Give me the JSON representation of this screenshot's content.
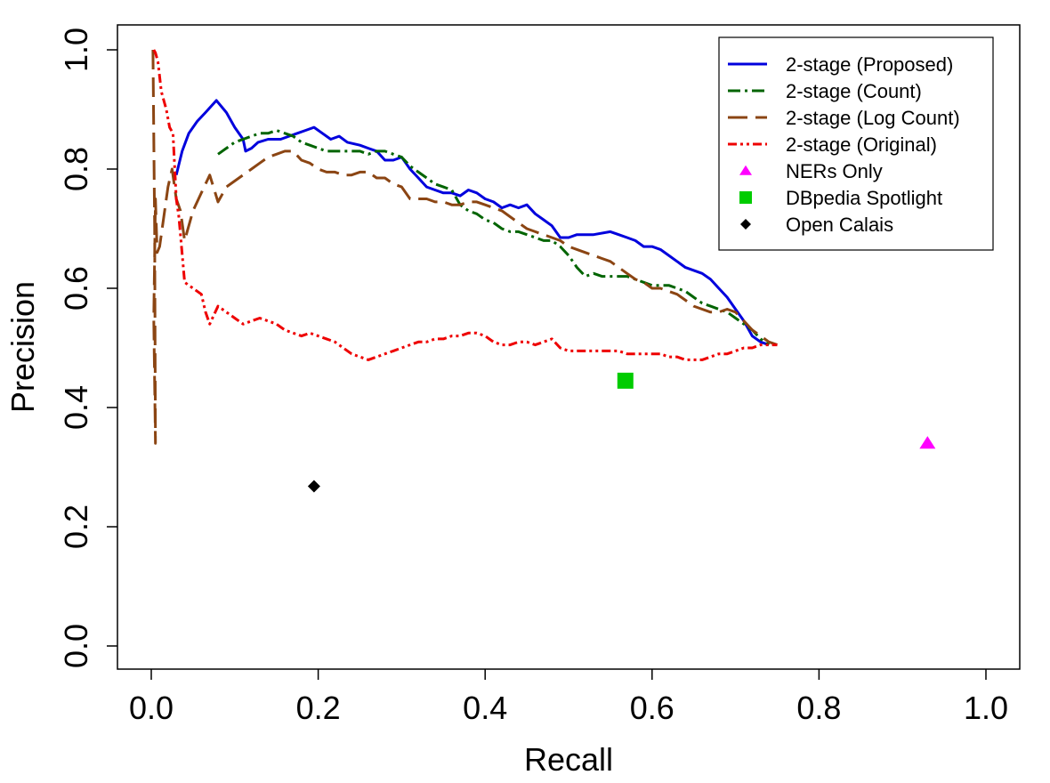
{
  "chart_data": {
    "type": "line",
    "title": "",
    "xlabel": "Recall",
    "ylabel": "Precision",
    "xlim": [
      0.0,
      1.0
    ],
    "ylim": [
      0.0,
      1.0
    ],
    "xticks": [
      "0.0",
      "0.2",
      "0.4",
      "0.6",
      "0.8",
      "1.0"
    ],
    "yticks": [
      "0.0",
      "0.2",
      "0.4",
      "0.6",
      "0.8",
      "1.0"
    ],
    "grid": false,
    "legend_position": "top-right",
    "series": [
      {
        "name": "2-stage (Proposed)",
        "color": "#0000dd",
        "style": "solid",
        "x": [
          0.03,
          0.037,
          0.045,
          0.055,
          0.065,
          0.078,
          0.09,
          0.1,
          0.11,
          0.113,
          0.12,
          0.128,
          0.14,
          0.155,
          0.165,
          0.175,
          0.185,
          0.195,
          0.205,
          0.215,
          0.225,
          0.235,
          0.25,
          0.26,
          0.27,
          0.28,
          0.29,
          0.3,
          0.31,
          0.32,
          0.33,
          0.34,
          0.35,
          0.36,
          0.37,
          0.38,
          0.39,
          0.4,
          0.41,
          0.42,
          0.43,
          0.44,
          0.45,
          0.46,
          0.47,
          0.48,
          0.49,
          0.5,
          0.51,
          0.52,
          0.53,
          0.55,
          0.56,
          0.57,
          0.58,
          0.59,
          0.6,
          0.61,
          0.62,
          0.63,
          0.64,
          0.65,
          0.66,
          0.67,
          0.68,
          0.69,
          0.7,
          0.71,
          0.72,
          0.73,
          0.74
        ],
        "y": [
          0.79,
          0.83,
          0.86,
          0.88,
          0.895,
          0.915,
          0.895,
          0.87,
          0.85,
          0.83,
          0.835,
          0.845,
          0.85,
          0.85,
          0.855,
          0.86,
          0.865,
          0.87,
          0.86,
          0.85,
          0.855,
          0.845,
          0.84,
          0.835,
          0.83,
          0.815,
          0.815,
          0.82,
          0.8,
          0.785,
          0.77,
          0.765,
          0.76,
          0.76,
          0.755,
          0.765,
          0.76,
          0.75,
          0.745,
          0.735,
          0.74,
          0.735,
          0.74,
          0.725,
          0.715,
          0.705,
          0.685,
          0.685,
          0.69,
          0.69,
          0.69,
          0.695,
          0.69,
          0.685,
          0.68,
          0.67,
          0.67,
          0.665,
          0.655,
          0.645,
          0.635,
          0.63,
          0.625,
          0.615,
          0.6,
          0.585,
          0.565,
          0.545,
          0.52,
          0.51,
          0.505
        ]
      },
      {
        "name": "2-stage (Count)",
        "color": "#006400",
        "style": "dashdot",
        "x": [
          0.08,
          0.09,
          0.1,
          0.11,
          0.12,
          0.13,
          0.14,
          0.15,
          0.16,
          0.17,
          0.18,
          0.19,
          0.2,
          0.21,
          0.22,
          0.23,
          0.24,
          0.25,
          0.26,
          0.27,
          0.28,
          0.29,
          0.3,
          0.31,
          0.32,
          0.33,
          0.34,
          0.35,
          0.36,
          0.37,
          0.38,
          0.39,
          0.4,
          0.41,
          0.42,
          0.43,
          0.44,
          0.45,
          0.46,
          0.47,
          0.48,
          0.49,
          0.5,
          0.51,
          0.52,
          0.53,
          0.54,
          0.55,
          0.56,
          0.57,
          0.58,
          0.59,
          0.6,
          0.61,
          0.62,
          0.63,
          0.64,
          0.65,
          0.66,
          0.67,
          0.68,
          0.69,
          0.7,
          0.71,
          0.72,
          0.73,
          0.74
        ],
        "y": [
          0.825,
          0.835,
          0.845,
          0.85,
          0.855,
          0.86,
          0.86,
          0.865,
          0.86,
          0.855,
          0.845,
          0.84,
          0.835,
          0.83,
          0.83,
          0.83,
          0.83,
          0.83,
          0.825,
          0.83,
          0.83,
          0.825,
          0.82,
          0.805,
          0.795,
          0.785,
          0.775,
          0.77,
          0.765,
          0.74,
          0.73,
          0.725,
          0.715,
          0.71,
          0.7,
          0.695,
          0.695,
          0.69,
          0.685,
          0.68,
          0.68,
          0.67,
          0.655,
          0.635,
          0.62,
          0.625,
          0.62,
          0.62,
          0.62,
          0.62,
          0.615,
          0.61,
          0.605,
          0.605,
          0.605,
          0.6,
          0.595,
          0.585,
          0.575,
          0.57,
          0.565,
          0.56,
          0.55,
          0.54,
          0.53,
          0.515,
          0.505
        ]
      },
      {
        "name": "2-stage (Log Count)",
        "color": "#8b4513",
        "style": "dashed",
        "x": [
          0.002,
          0.004,
          0.005,
          0.003,
          0.005,
          0.007,
          0.01,
          0.015,
          0.02,
          0.025,
          0.03,
          0.035,
          0.04,
          0.05,
          0.06,
          0.07,
          0.08,
          0.09,
          0.1,
          0.11,
          0.12,
          0.13,
          0.14,
          0.15,
          0.16,
          0.17,
          0.18,
          0.19,
          0.2,
          0.21,
          0.22,
          0.23,
          0.24,
          0.25,
          0.26,
          0.27,
          0.28,
          0.29,
          0.3,
          0.31,
          0.32,
          0.33,
          0.34,
          0.35,
          0.36,
          0.37,
          0.38,
          0.39,
          0.4,
          0.41,
          0.42,
          0.43,
          0.44,
          0.45,
          0.46,
          0.47,
          0.48,
          0.49,
          0.5,
          0.51,
          0.52,
          0.53,
          0.54,
          0.55,
          0.56,
          0.57,
          0.58,
          0.59,
          0.6,
          0.61,
          0.62,
          0.63,
          0.64,
          0.65,
          0.66,
          0.67,
          0.68,
          0.69,
          0.7,
          0.71,
          0.72,
          0.73,
          0.74,
          0.75
        ],
        "y": [
          1.0,
          0.7,
          0.34,
          0.55,
          0.75,
          0.66,
          0.67,
          0.72,
          0.77,
          0.8,
          0.75,
          0.73,
          0.68,
          0.73,
          0.76,
          0.79,
          0.745,
          0.77,
          0.78,
          0.79,
          0.8,
          0.81,
          0.82,
          0.825,
          0.83,
          0.83,
          0.815,
          0.81,
          0.8,
          0.795,
          0.795,
          0.79,
          0.79,
          0.795,
          0.795,
          0.785,
          0.785,
          0.775,
          0.77,
          0.75,
          0.75,
          0.75,
          0.745,
          0.745,
          0.74,
          0.74,
          0.745,
          0.745,
          0.74,
          0.735,
          0.73,
          0.72,
          0.71,
          0.7,
          0.695,
          0.69,
          0.685,
          0.68,
          0.67,
          0.665,
          0.66,
          0.655,
          0.65,
          0.645,
          0.635,
          0.625,
          0.615,
          0.61,
          0.6,
          0.6,
          0.595,
          0.59,
          0.58,
          0.57,
          0.565,
          0.56,
          0.56,
          0.565,
          0.56,
          0.545,
          0.53,
          0.52,
          0.51,
          0.505
        ]
      },
      {
        "name": "2-stage (Original)",
        "color": "#ee0000",
        "style": "dashdotdot",
        "x": [
          0.003,
          0.005,
          0.008,
          0.012,
          0.018,
          0.022,
          0.026,
          0.03,
          0.033,
          0.035,
          0.04,
          0.05,
          0.06,
          0.065,
          0.07,
          0.08,
          0.09,
          0.1,
          0.11,
          0.12,
          0.13,
          0.14,
          0.15,
          0.16,
          0.17,
          0.18,
          0.19,
          0.2,
          0.21,
          0.22,
          0.23,
          0.24,
          0.25,
          0.26,
          0.27,
          0.28,
          0.29,
          0.3,
          0.31,
          0.32,
          0.33,
          0.34,
          0.35,
          0.36,
          0.37,
          0.38,
          0.39,
          0.4,
          0.41,
          0.42,
          0.43,
          0.44,
          0.45,
          0.46,
          0.47,
          0.48,
          0.49,
          0.5,
          0.51,
          0.52,
          0.53,
          0.54,
          0.55,
          0.56,
          0.57,
          0.58,
          0.59,
          0.6,
          0.61,
          0.62,
          0.63,
          0.64,
          0.65,
          0.66,
          0.67,
          0.68,
          0.69,
          0.7,
          0.71,
          0.72,
          0.73,
          0.74,
          0.75
        ],
        "y": [
          1.0,
          0.995,
          0.98,
          0.93,
          0.9,
          0.87,
          0.86,
          0.75,
          0.72,
          0.69,
          0.61,
          0.6,
          0.59,
          0.56,
          0.54,
          0.57,
          0.56,
          0.55,
          0.54,
          0.545,
          0.55,
          0.545,
          0.54,
          0.53,
          0.525,
          0.52,
          0.525,
          0.52,
          0.515,
          0.51,
          0.5,
          0.49,
          0.485,
          0.48,
          0.485,
          0.49,
          0.495,
          0.5,
          0.505,
          0.51,
          0.51,
          0.515,
          0.515,
          0.52,
          0.52,
          0.525,
          0.525,
          0.52,
          0.51,
          0.505,
          0.505,
          0.51,
          0.51,
          0.505,
          0.51,
          0.515,
          0.5,
          0.495,
          0.495,
          0.495,
          0.495,
          0.495,
          0.495,
          0.495,
          0.49,
          0.49,
          0.49,
          0.49,
          0.49,
          0.485,
          0.485,
          0.48,
          0.48,
          0.48,
          0.485,
          0.49,
          0.49,
          0.495,
          0.5,
          0.5,
          0.505,
          0.505,
          0.505
        ]
      }
    ],
    "points": [
      {
        "name": "NERs Only",
        "marker": "triangle",
        "color": "#ff00ff",
        "x": 0.93,
        "y": 0.34
      },
      {
        "name": "DBpedia Spotlight",
        "marker": "square",
        "color": "#00cc00",
        "x": 0.568,
        "y": 0.445
      },
      {
        "name": "Open Calais",
        "marker": "diamond",
        "color": "#000000",
        "x": 0.195,
        "y": 0.268
      }
    ],
    "legend": [
      {
        "label": "2-stage (Proposed)",
        "kind": "line",
        "style": "solid",
        "color": "#0000dd"
      },
      {
        "label": "2-stage (Count)",
        "kind": "line",
        "style": "dashdot",
        "color": "#006400"
      },
      {
        "label": "2-stage (Log Count)",
        "kind": "line",
        "style": "dashed",
        "color": "#8b4513"
      },
      {
        "label": "2-stage (Original)",
        "kind": "line",
        "style": "dashdotdot",
        "color": "#ee0000"
      },
      {
        "label": "NERs Only",
        "kind": "marker",
        "marker": "triangle",
        "color": "#ff00ff"
      },
      {
        "label": "DBpedia Spotlight",
        "kind": "marker",
        "marker": "square",
        "color": "#00cc00"
      },
      {
        "label": "Open Calais",
        "kind": "marker",
        "marker": "diamond",
        "color": "#000000"
      }
    ]
  }
}
